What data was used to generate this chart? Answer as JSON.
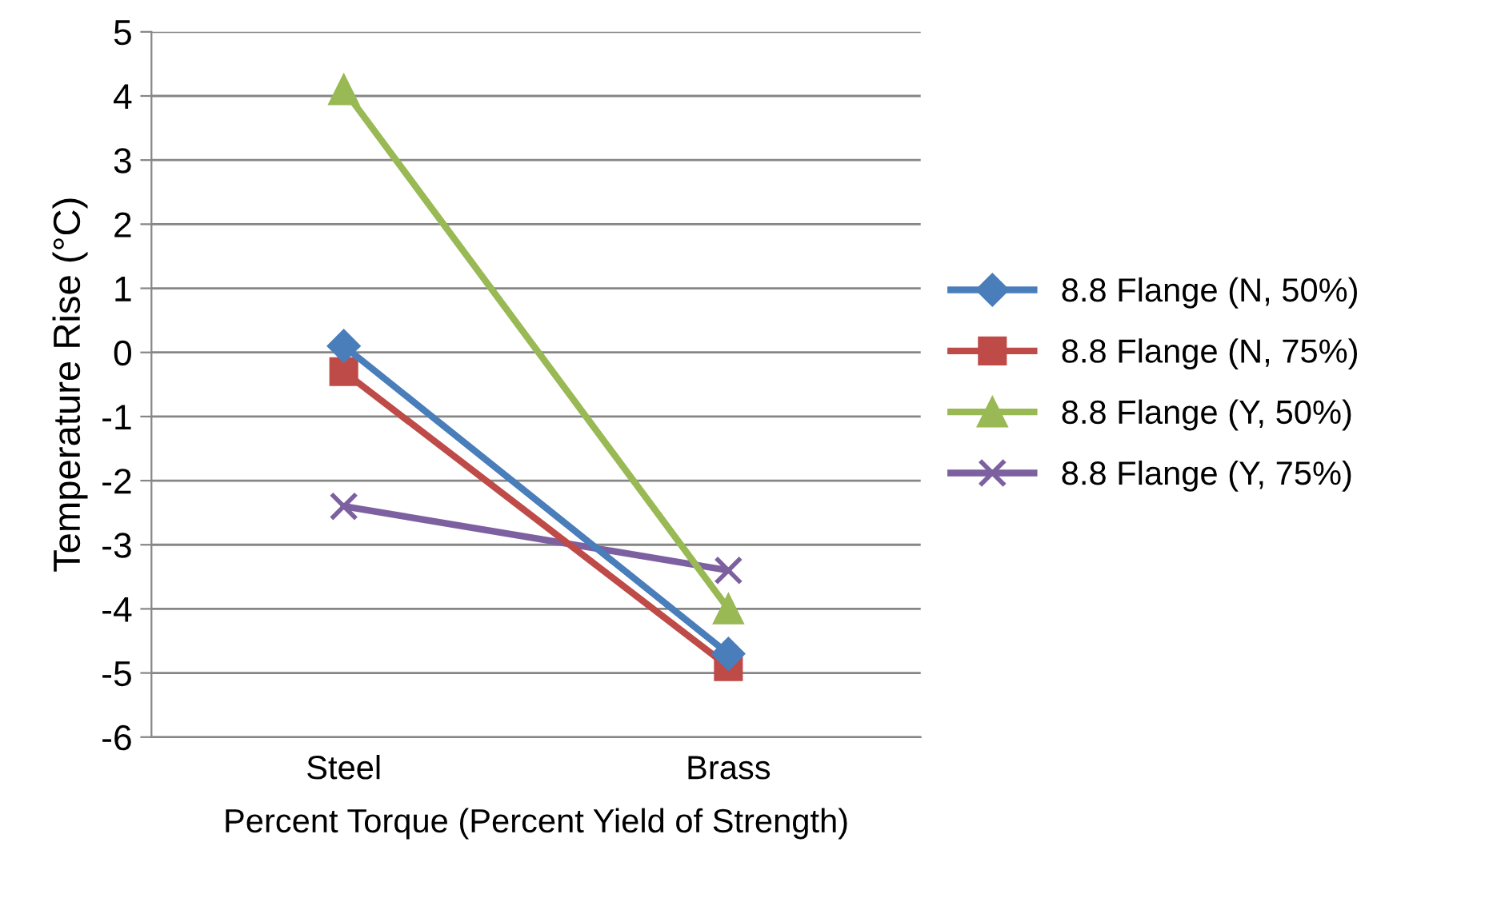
{
  "chart_data": {
    "type": "line",
    "xlabel": "Percent Torque (Percent Yield of Strength)",
    "ylabel": "Temperature Rise (°C)",
    "categories": [
      "Steel",
      "Brass"
    ],
    "series": [
      {
        "name": "8.8 Flange (N, 50%)",
        "color": "#4a7ebb",
        "marker": "diamond",
        "values": [
          0.1,
          -4.7
        ]
      },
      {
        "name": "8.8 Flange (N, 75%)",
        "color": "#be4b48",
        "marker": "square",
        "values": [
          -0.3,
          -4.9
        ]
      },
      {
        "name": "8.8 Flange (Y, 50%)",
        "color": "#98b954",
        "marker": "triangle",
        "values": [
          4.1,
          -4.0
        ]
      },
      {
        "name": "8.8 Flange (Y, 75%)",
        "color": "#7d60a0",
        "marker": "cross",
        "values": [
          -2.4,
          -3.4
        ]
      }
    ],
    "ylim": [
      -6,
      5
    ],
    "yticks": [
      -6,
      -5,
      -4,
      -3,
      -2,
      -1,
      0,
      1,
      2,
      3,
      4,
      5
    ],
    "grid": "y",
    "legend": "right",
    "line_style": "solid"
  }
}
